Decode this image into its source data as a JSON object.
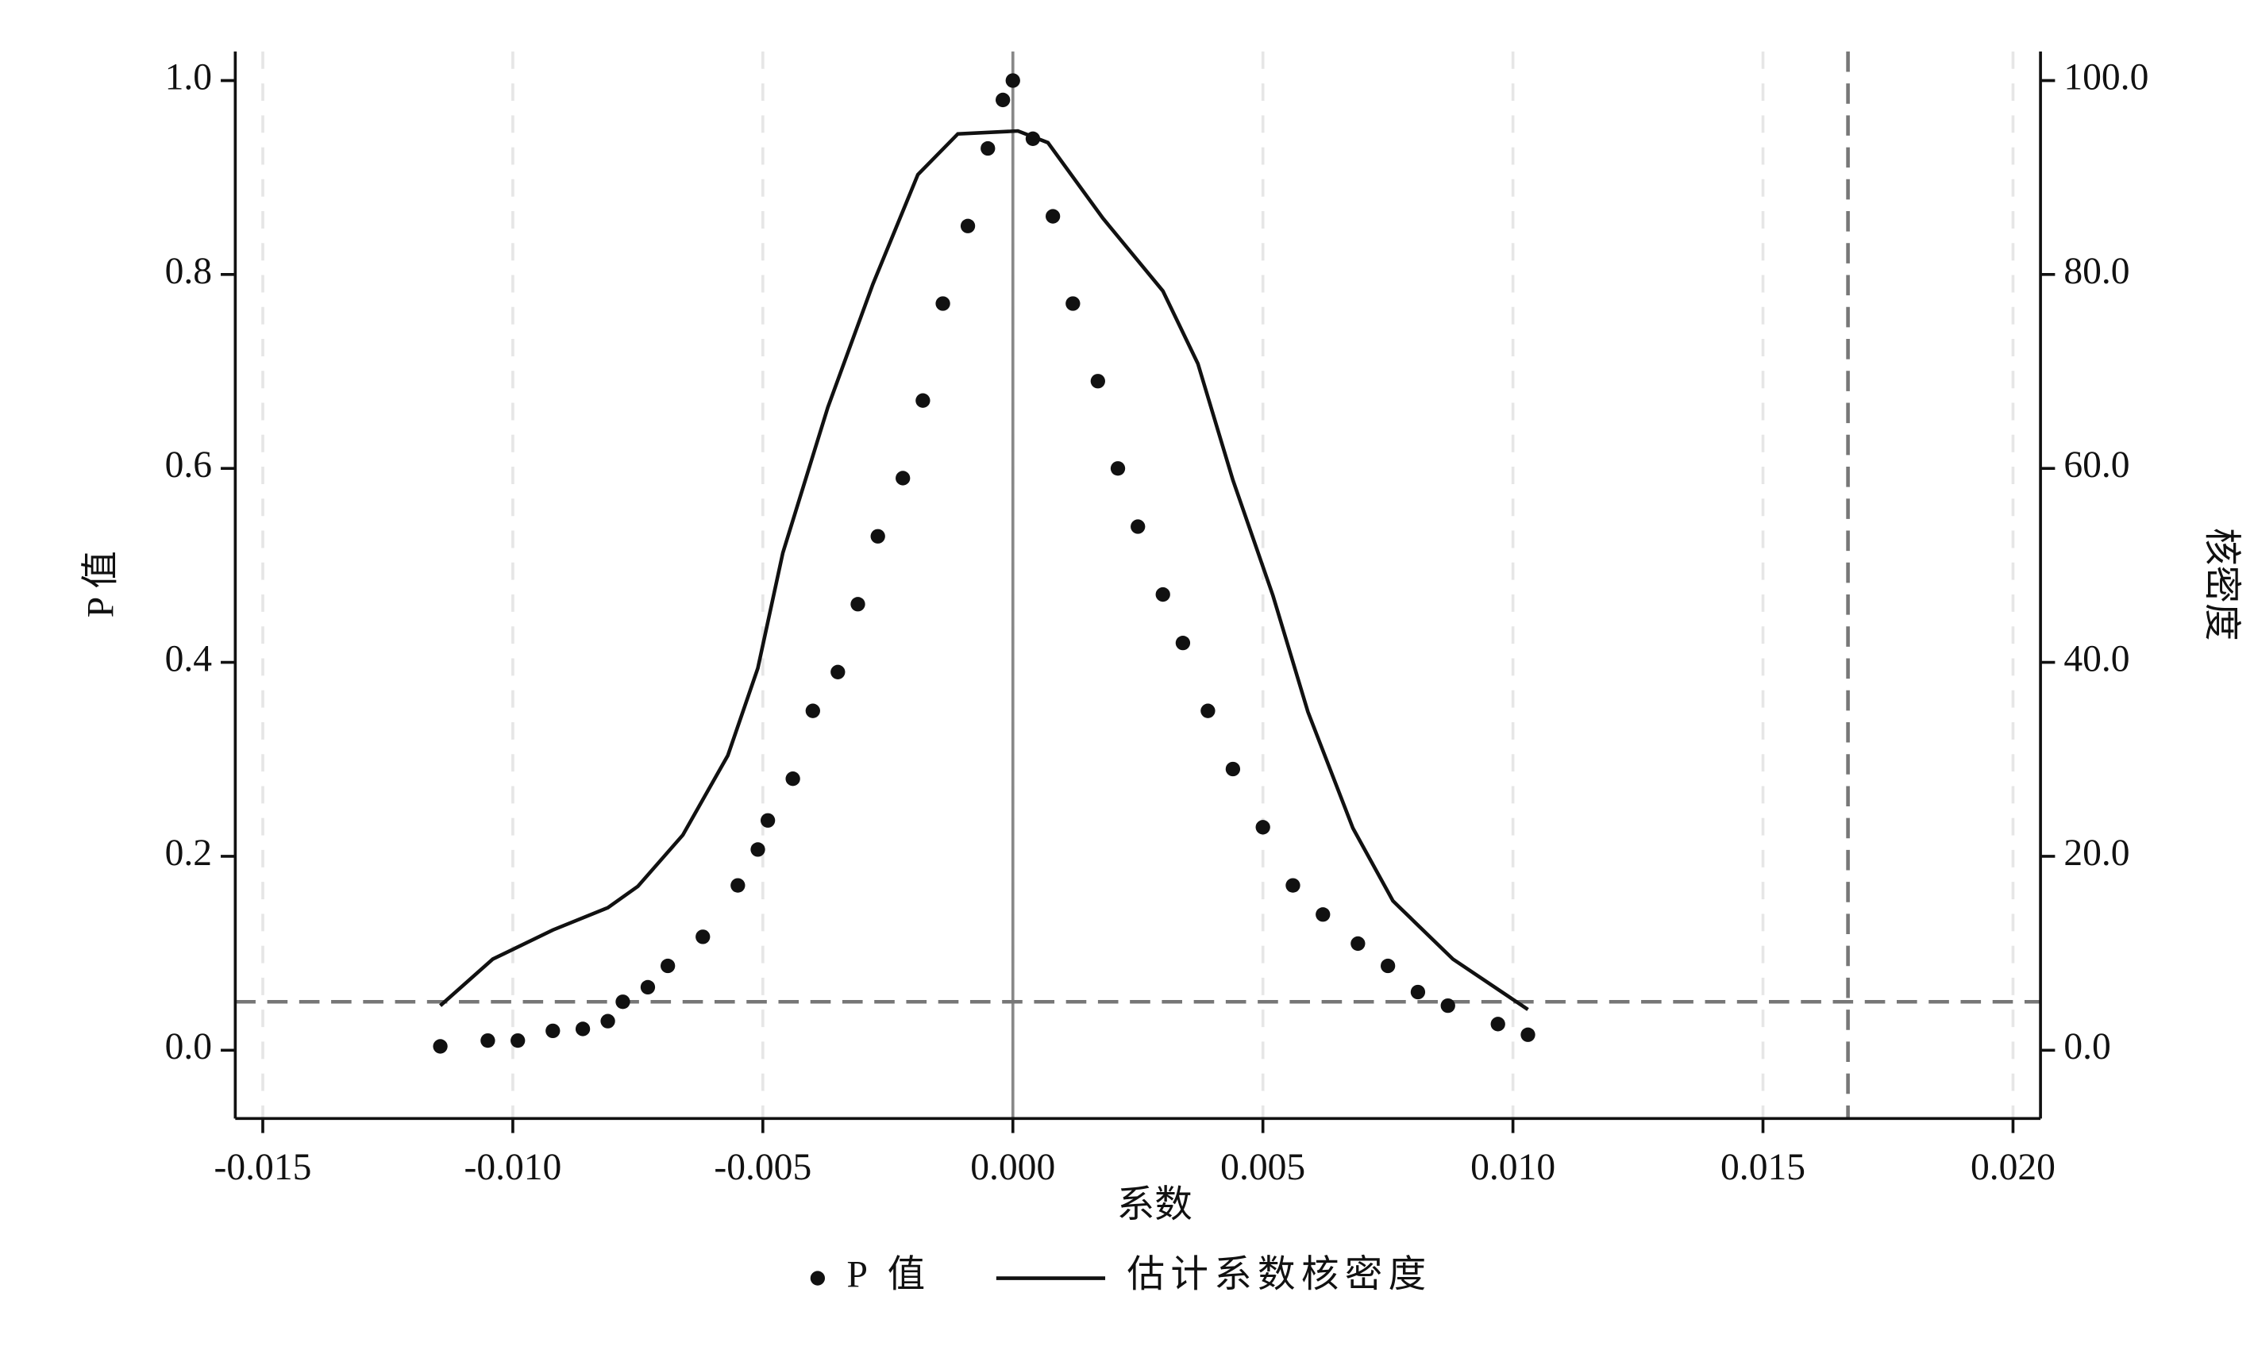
{
  "chart_data": {
    "type": "scatter",
    "x_label": "系数",
    "y_label": "P 值",
    "y2_label": "核密度",
    "xlim": [
      -0.01555,
      0.02055
    ],
    "ylim": [
      -0.0704,
      1.03
    ],
    "y2lim": [
      -7.04,
      103
    ],
    "xticks": [
      {
        "value": -0.015,
        "label": "-0.015"
      },
      {
        "value": -0.01,
        "label": "-0.010"
      },
      {
        "value": -0.005,
        "label": "-0.005"
      },
      {
        "value": 0,
        "label": "0.000"
      },
      {
        "value": 0.005,
        "label": "0.005"
      },
      {
        "value": 0.01,
        "label": "0.010"
      },
      {
        "value": 0.015,
        "label": "0.015"
      },
      {
        "value": 0.02,
        "label": "0.020"
      }
    ],
    "yticks": [
      {
        "value": 0,
        "label": "0.0"
      },
      0.2,
      0.4,
      0.6,
      0.8,
      {
        "value": 1,
        "label": "1.0"
      }
    ],
    "y2ticks": [
      {
        "value": 0,
        "label": "0.0"
      },
      {
        "value": 20,
        "label": "20.0"
      },
      {
        "value": 40,
        "label": "40.0"
      },
      {
        "value": 60,
        "label": "60.0"
      },
      {
        "value": 80,
        "label": "80.0"
      },
      {
        "value": 100,
        "label": "100.0"
      }
    ],
    "grid": true,
    "legend": "bottom",
    "reference_lines": {
      "x": 0.0167,
      "y": 0.05,
      "zero_x": 0
    },
    "series": [
      {
        "name": "P 值",
        "type": "scatter",
        "color": "#111111",
        "x": [
          -0.01145,
          -0.0105,
          -0.0099,
          -0.0092,
          -0.0086,
          -0.0081,
          -0.0078,
          -0.0073,
          -0.0069,
          -0.0062,
          -0.0055,
          -0.0051,
          -0.0049,
          -0.0044,
          -0.004,
          -0.0035,
          -0.0031,
          -0.0027,
          -0.0022,
          -0.0018,
          -0.0014,
          -0.0009,
          -0.0005,
          -0.0002,
          0,
          0.0004,
          0.0008,
          0.0012,
          0.0017,
          0.0021,
          0.0025,
          0.003,
          0.0034,
          0.0039,
          0.0044,
          0.005,
          0.0056,
          0.0062,
          0.0069,
          0.0075,
          0.0081,
          0.0087,
          0.0097,
          0.0103
        ],
        "values": [
          0.004,
          0.01,
          0.01,
          0.02,
          0.022,
          0.03,
          0.05,
          0.065,
          0.087,
          0.117,
          0.17,
          0.207,
          0.237,
          0.28,
          0.35,
          0.39,
          0.46,
          0.53,
          0.59,
          0.67,
          0.77,
          0.85,
          0.93,
          0.98,
          1.0,
          0.94,
          0.86,
          0.77,
          0.69,
          0.6,
          0.54,
          0.47,
          0.42,
          0.35,
          0.29,
          0.23,
          0.17,
          0.14,
          0.11,
          0.087,
          0.06,
          0.046,
          0.027,
          0.016
        ]
      },
      {
        "name": "估计系数核密度",
        "type": "line",
        "axis": "y2",
        "color": "#111111",
        "x": [
          -0.01145,
          -0.0104,
          -0.0092,
          -0.0081,
          -0.0075,
          -0.0066,
          -0.0057,
          -0.0051,
          -0.0046,
          -0.0037,
          -0.0028,
          -0.0019,
          -0.0011,
          0.0001,
          0.0007,
          0.0018,
          0.003,
          0.0037,
          0.0044,
          0.0052,
          0.0059,
          0.0068,
          0.0076,
          0.0088,
          0.0103
        ],
        "values": [
          4.6,
          9.4,
          12.4,
          14.7,
          16.9,
          22.2,
          30.4,
          39.4,
          51.3,
          66.3,
          79.0,
          90.3,
          94.5,
          94.8,
          93.6,
          85.8,
          78.3,
          70.8,
          58.8,
          46.9,
          34.9,
          22.9,
          15.4,
          9.4,
          4.2
        ]
      }
    ]
  }
}
